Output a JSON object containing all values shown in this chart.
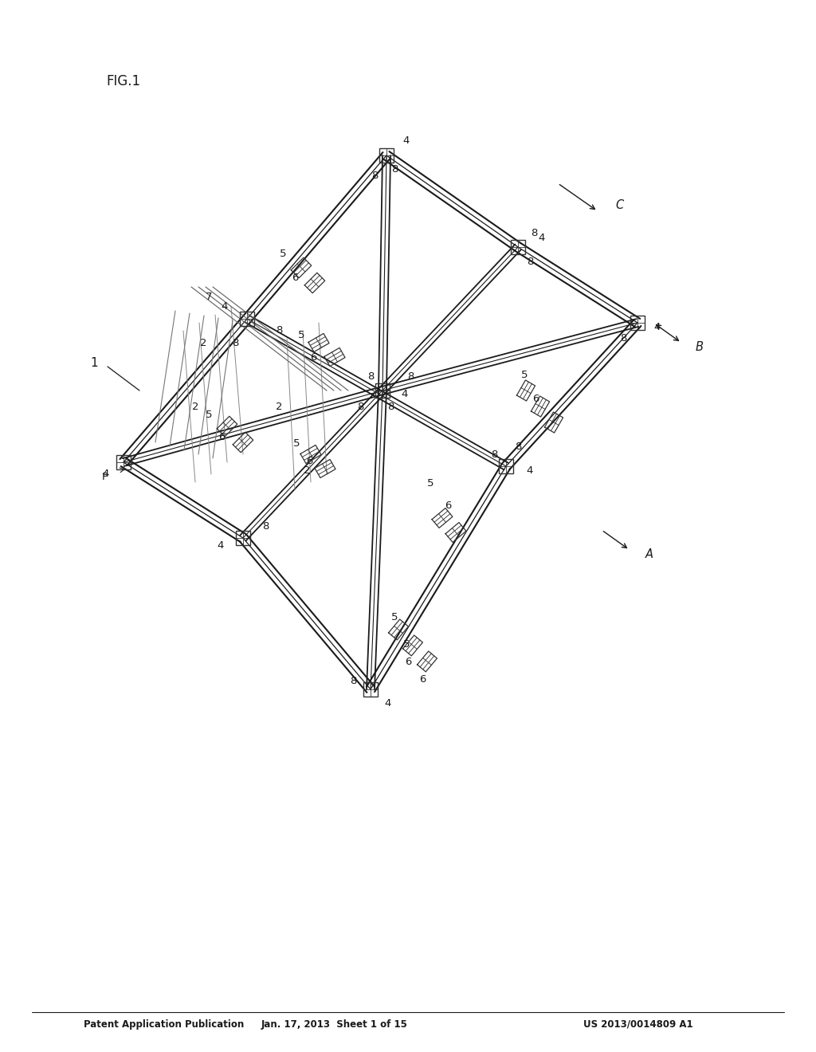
{
  "bg_color": "#ffffff",
  "line_color": "#1a1a1a",
  "header_text_left": "Patent Application Publication",
  "header_text_mid": "Jan. 17, 2013  Sheet 1 of 15",
  "header_text_right": "US 2013/0014809 A1",
  "figure_label": "FIG.1"
}
